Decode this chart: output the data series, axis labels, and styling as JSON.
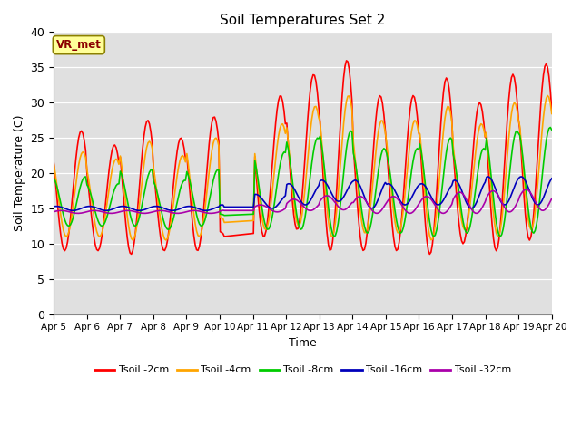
{
  "title": "Soil Temperatures Set 2",
  "xlabel": "Time",
  "ylabel": "Soil Temperature (C)",
  "ylim": [
    0,
    40
  ],
  "yticks": [
    0,
    5,
    10,
    15,
    20,
    25,
    30,
    35,
    40
  ],
  "x_tick_labels": [
    "Apr 5",
    "Apr 6",
    "Apr 7",
    "Apr 8",
    "Apr 9",
    "Apr 10",
    "Apr 11",
    "Apr 12",
    "Apr 13",
    "Apr 14",
    "Apr 15",
    "Apr 16",
    "Apr 17",
    "Apr 18",
    "Apr 19",
    "Apr 20"
  ],
  "annotation_text": "VR_met",
  "annotation_color": "#8B0000",
  "annotation_bg": "#FFFF99",
  "annotation_edge": "#8B8000",
  "colors": {
    "Tsoil -2cm": "#FF0000",
    "Tsoil -4cm": "#FFA500",
    "Tsoil -8cm": "#00CC00",
    "Tsoil -16cm": "#0000BB",
    "Tsoil -32cm": "#AA00AA"
  },
  "bg_color": "#E0E0E0",
  "linewidth": 1.2
}
